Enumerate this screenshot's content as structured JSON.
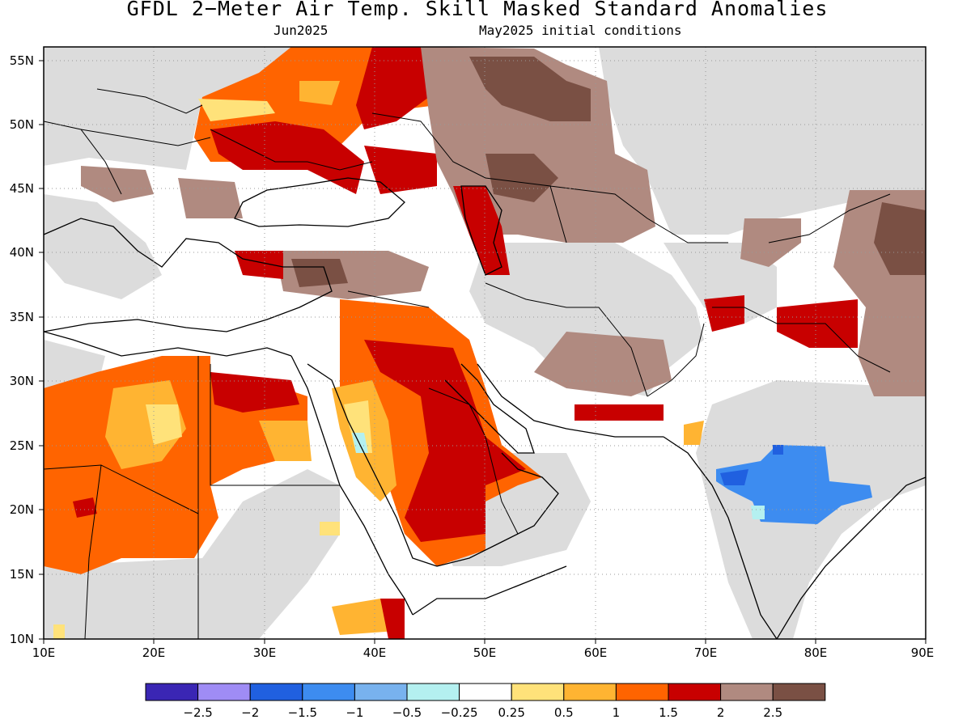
{
  "title": "GFDL 2−Meter Air Temp. Skill Masked Standard Anomalies",
  "subtitle_left": "Jun2025",
  "subtitle_right": "May2025 initial conditions",
  "lat_labels": [
    "55N",
    "50N",
    "45N",
    "40N",
    "35N",
    "30N",
    "25N",
    "20N",
    "15N",
    "10N"
  ],
  "lon_labels": [
    "10E",
    "20E",
    "30E",
    "40E",
    "50E",
    "60E",
    "70E",
    "80E",
    "90E"
  ],
  "colorbar": {
    "colors": [
      "#3a26b4",
      "#9f8cf5",
      "#2060e0",
      "#3d8cf0",
      "#78b2ee",
      "#b4f0f0",
      "#ffffff",
      "#ffe27a",
      "#ffb432",
      "#ff6400",
      "#c80000",
      "#b08a80",
      "#7a5044"
    ],
    "labels": [
      "−2.5",
      "−2",
      "−1.5",
      "−1",
      "−0.5",
      "−0.25",
      "0.25",
      "0.5",
      "1",
      "1.5",
      "2",
      "2.5"
    ]
  },
  "fill_colors": {
    "masked": "#dcdcdc",
    "land_white": "#ffffff",
    "orange": "#ff6400",
    "dark_red": "#c80000",
    "light_orange": "#ffb432",
    "yellow": "#ffe27a",
    "brown_light": "#b08a80",
    "brown_dark": "#7a5044",
    "blue": "#3d8cf0",
    "blue_dark": "#2060e0",
    "cyan": "#b4f0f0"
  }
}
